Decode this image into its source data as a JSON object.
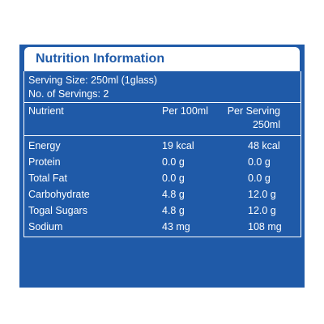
{
  "header": {
    "title": "Nutrition Information"
  },
  "serving": {
    "size": "Serving Size: 250ml (1glass)",
    "count": "No. of Servings: 2"
  },
  "table": {
    "header": [
      [
        "Nutrient"
      ],
      [
        "Per 100ml"
      ],
      [
        "Per Serving",
        "250ml"
      ]
    ],
    "rows": [
      [
        "Energy",
        "19 kcal",
        "48 kcal"
      ],
      [
        "Protein",
        "0.0 g",
        "0.0 g"
      ],
      [
        "Total Fat",
        "0.0 g",
        "0.0 g"
      ],
      [
        "Carbohydrate",
        "4.8 g",
        "12.0 g"
      ],
      [
        "Togal Sugars",
        "4.8 g",
        "12.0 g"
      ],
      [
        "Sodium",
        "43 mg",
        "108 mg"
      ]
    ]
  }
}
